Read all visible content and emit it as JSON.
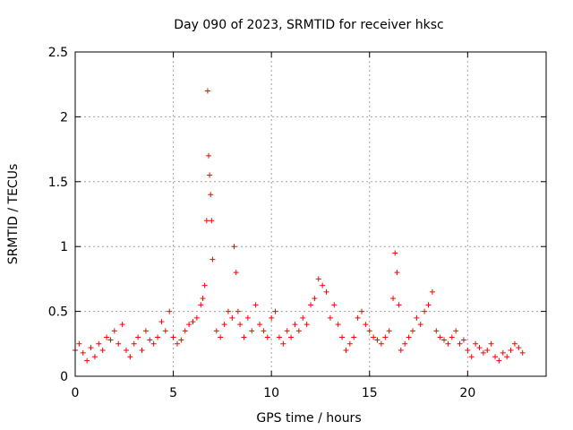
{
  "chart_data": {
    "type": "scatter",
    "title": "Day 090 of 2023, SRMTID for receiver hksc",
    "xlabel": "GPS time / hours",
    "ylabel": "SRMTID / TECUs",
    "xlim": [
      0,
      24
    ],
    "ylim": [
      0,
      2.5
    ],
    "xticks": [
      0,
      5,
      10,
      15,
      20
    ],
    "yticks": [
      0,
      0.5,
      1,
      1.5,
      2,
      2.5
    ],
    "xtick_labels": [
      "0",
      "5",
      "10",
      "15",
      "20"
    ],
    "ytick_labels": [
      "0",
      "0.5",
      "1",
      "1.5",
      "2",
      "2.5"
    ],
    "grid": true,
    "marker": "+",
    "colors": {
      "series": "#ff0000",
      "axis": "#000000",
      "grid": "#a0a0a0"
    },
    "series": [
      {
        "name": "SRMTID",
        "x": [
          0.0,
          0.2,
          0.4,
          0.6,
          0.8,
          1.0,
          1.2,
          1.4,
          1.6,
          1.8,
          2.0,
          2.2,
          2.4,
          2.6,
          2.8,
          3.0,
          3.2,
          3.4,
          3.6,
          3.8,
          4.0,
          4.2,
          4.4,
          4.6,
          4.8,
          5.0,
          5.2,
          5.4,
          5.6,
          5.8,
          6.0,
          6.2,
          6.4,
          6.5,
          6.6,
          6.7,
          6.75,
          6.8,
          6.85,
          6.9,
          6.95,
          7.0,
          7.2,
          7.4,
          7.6,
          7.8,
          8.0,
          8.1,
          8.2,
          8.3,
          8.4,
          8.6,
          8.8,
          9.0,
          9.2,
          9.4,
          9.6,
          9.8,
          10.0,
          10.2,
          10.4,
          10.6,
          10.8,
          11.0,
          11.2,
          11.4,
          11.6,
          11.8,
          12.0,
          12.2,
          12.4,
          12.6,
          12.8,
          13.0,
          13.2,
          13.4,
          13.6,
          13.8,
          14.0,
          14.2,
          14.4,
          14.6,
          14.8,
          15.0,
          15.2,
          15.4,
          15.6,
          15.8,
          16.0,
          16.2,
          16.3,
          16.4,
          16.5,
          16.6,
          16.8,
          17.0,
          17.2,
          17.4,
          17.6,
          17.8,
          18.0,
          18.2,
          18.4,
          18.6,
          18.8,
          19.0,
          19.2,
          19.4,
          19.6,
          19.8,
          20.0,
          20.2,
          20.4,
          20.6,
          20.8,
          21.0,
          21.2,
          21.4,
          21.6,
          21.8,
          22.0,
          22.2,
          22.4,
          22.6,
          22.8
        ],
        "y": [
          0.2,
          0.25,
          0.18,
          0.12,
          0.22,
          0.15,
          0.25,
          0.2,
          0.3,
          0.28,
          0.35,
          0.25,
          0.4,
          0.2,
          0.15,
          0.25,
          0.3,
          0.2,
          0.35,
          0.28,
          0.25,
          0.3,
          0.42,
          0.35,
          0.5,
          0.3,
          0.25,
          0.28,
          0.35,
          0.4,
          0.42,
          0.45,
          0.55,
          0.6,
          0.7,
          1.2,
          2.2,
          1.7,
          1.55,
          1.4,
          1.2,
          0.9,
          0.35,
          0.3,
          0.4,
          0.5,
          0.45,
          1.0,
          0.8,
          0.5,
          0.4,
          0.3,
          0.45,
          0.35,
          0.55,
          0.4,
          0.35,
          0.3,
          0.45,
          0.5,
          0.3,
          0.25,
          0.35,
          0.3,
          0.4,
          0.35,
          0.45,
          0.4,
          0.55,
          0.6,
          0.75,
          0.7,
          0.65,
          0.45,
          0.55,
          0.4,
          0.3,
          0.2,
          0.25,
          0.3,
          0.45,
          0.5,
          0.4,
          0.35,
          0.3,
          0.28,
          0.25,
          0.3,
          0.35,
          0.6,
          0.95,
          0.8,
          0.55,
          0.2,
          0.25,
          0.3,
          0.35,
          0.45,
          0.4,
          0.5,
          0.55,
          0.65,
          0.35,
          0.3,
          0.28,
          0.25,
          0.3,
          0.35,
          0.25,
          0.28,
          0.2,
          0.15,
          0.25,
          0.22,
          0.18,
          0.2,
          0.25,
          0.15,
          0.12,
          0.18,
          0.15,
          0.2,
          0.25,
          0.22,
          0.18
        ]
      }
    ]
  }
}
